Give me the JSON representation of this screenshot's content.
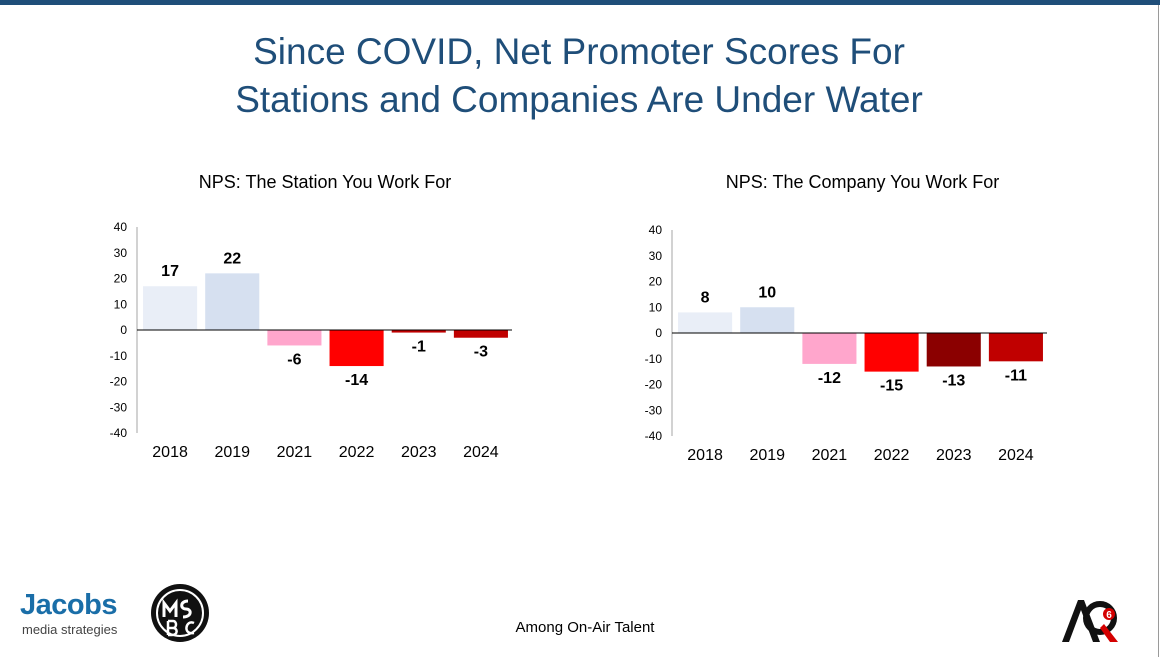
{
  "title_lines": [
    "Since COVID, Net Promoter Scores For",
    "Stations and Companies Are Under Water"
  ],
  "footer_note": "Among On-Air Talent",
  "logos": {
    "jacobs_word": "Jacobs",
    "jacobs_sub": "media strategies",
    "aq_text": "AQ",
    "aq_badge": "6"
  },
  "chart_data": [
    {
      "type": "bar",
      "title": "NPS: The Station You Work For",
      "categories": [
        "2018",
        "2019",
        "2021",
        "2022",
        "2023",
        "2024"
      ],
      "values": [
        17,
        22,
        -6,
        -14,
        -1,
        -3
      ],
      "value_labels": [
        "17",
        "22",
        "-6",
        "-14",
        "-1",
        "-3"
      ],
      "colors": [
        "#e9eef7",
        "#d6e0f0",
        "#ffa6cc",
        "#ff0000",
        "#c00000",
        "#c00000"
      ],
      "ylim": [
        -40,
        40
      ],
      "yticks": [
        "40",
        "30",
        "20",
        "10",
        "0",
        "-10",
        "-20",
        "-30",
        "-40"
      ],
      "xlabel": "",
      "ylabel": "",
      "grid": false
    },
    {
      "type": "bar",
      "title": "NPS: The Company You Work For",
      "categories": [
        "2018",
        "2019",
        "2021",
        "2022",
        "2023",
        "2024"
      ],
      "values": [
        8,
        10,
        -12,
        -15,
        -13,
        -11
      ],
      "value_labels": [
        "8",
        "10",
        "-12",
        "-15",
        "-13",
        "-11"
      ],
      "colors": [
        "#e9eef7",
        "#d6e0f0",
        "#ffa6cc",
        "#ff0000",
        "#8b0000",
        "#c00000"
      ],
      "ylim": [
        -40,
        40
      ],
      "yticks": [
        "40",
        "30",
        "20",
        "10",
        "0",
        "-10",
        "-20",
        "-30",
        "-40"
      ],
      "xlabel": "",
      "ylabel": "",
      "grid": false
    }
  ]
}
